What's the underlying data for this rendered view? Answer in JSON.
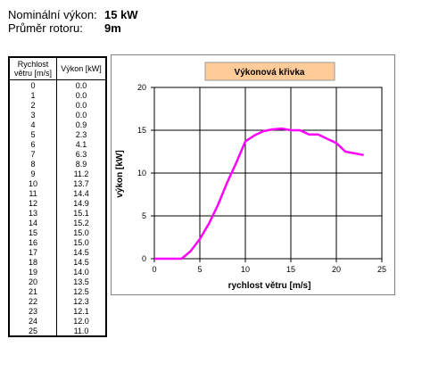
{
  "header": {
    "power_label": "Nominální výkon:",
    "power_value": "15 kW",
    "rotor_label": "Průměr rotoru:",
    "rotor_value": "9m"
  },
  "table": {
    "col1_header": "Rychlost větru [m/s]",
    "col2_header": "Výkon [kW]",
    "rows": [
      [
        "0",
        "0.0"
      ],
      [
        "1",
        "0.0"
      ],
      [
        "2",
        "0.0"
      ],
      [
        "3",
        "0.0"
      ],
      [
        "4",
        "0.9"
      ],
      [
        "5",
        "2.3"
      ],
      [
        "6",
        "4.1"
      ],
      [
        "7",
        "6.3"
      ],
      [
        "8",
        "8.9"
      ],
      [
        "9",
        "11.2"
      ],
      [
        "10",
        "13.7"
      ],
      [
        "11",
        "14.4"
      ],
      [
        "12",
        "14.9"
      ],
      [
        "13",
        "15.1"
      ],
      [
        "14",
        "15.2"
      ],
      [
        "15",
        "15.0"
      ],
      [
        "16",
        "15.0"
      ],
      [
        "17",
        "14.5"
      ],
      [
        "18",
        "14.5"
      ],
      [
        "19",
        "14.0"
      ],
      [
        "20",
        "13.5"
      ],
      [
        "21",
        "12.5"
      ],
      [
        "22",
        "12.3"
      ],
      [
        "23",
        "12.1"
      ],
      [
        "24",
        "12.0"
      ],
      [
        "25",
        "11.0"
      ]
    ]
  },
  "colors": {
    "line": "#ff00ff",
    "title_bg": "#ffcc99"
  },
  "chart_data": {
    "type": "line",
    "title": "Výkonová křivka",
    "xlabel": "rychlost větru [m/s]",
    "ylabel": "výkon [kW]",
    "xlim": [
      0,
      25
    ],
    "ylim": [
      0,
      20
    ],
    "xticks": [
      "0",
      "5",
      "10",
      "15",
      "20",
      "25"
    ],
    "yticks": [
      "0",
      "5",
      "10",
      "15",
      "20"
    ],
    "grid": true,
    "x": [
      0,
      1,
      2,
      3,
      4,
      5,
      6,
      7,
      8,
      9,
      10,
      11,
      12,
      13,
      14,
      15,
      16,
      17,
      18,
      19,
      20,
      21,
      22,
      23
    ],
    "series": [
      {
        "values": [
          0,
          0,
          0,
          0,
          0.9,
          2.3,
          4.1,
          6.3,
          8.9,
          11.2,
          13.7,
          14.4,
          14.9,
          15.1,
          15.2,
          15.0,
          15.0,
          14.5,
          14.5,
          14.0,
          13.5,
          12.5,
          12.3,
          12.1
        ]
      }
    ]
  }
}
